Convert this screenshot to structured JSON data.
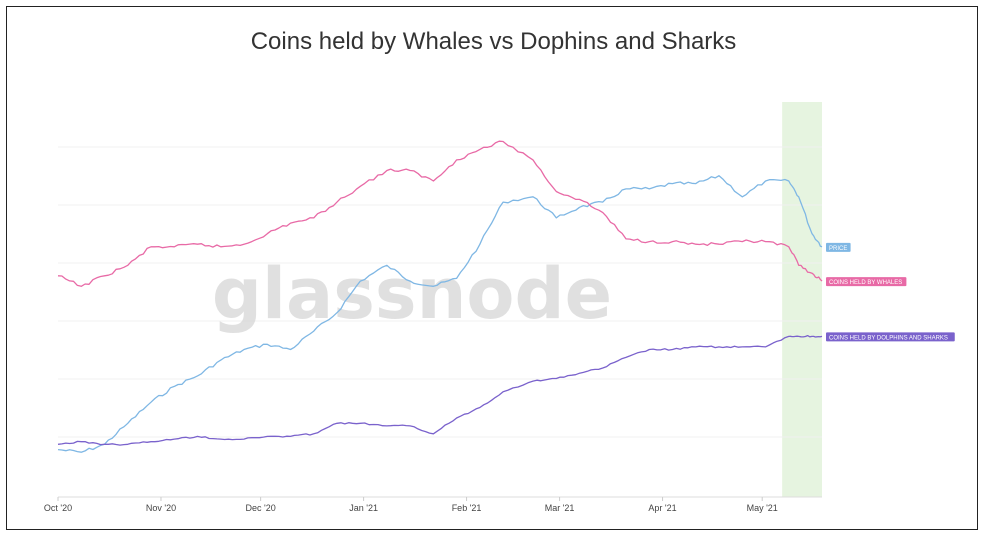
{
  "chart_data": {
    "type": "line",
    "title": "Coins held by Whales vs Dophins and Sharks",
    "watermark": "glassnode",
    "x_ticks": [
      "Oct '20",
      "Nov '20",
      "Dec '20",
      "Jan '21",
      "Feb '21",
      "Mar '21",
      "Apr '21",
      "May '21"
    ],
    "x_range": [
      "2020-10-01",
      "2021-05-19"
    ],
    "highlight": {
      "from": "2021-05-07",
      "to": "2021-05-19",
      "color": "#e6f4e0"
    },
    "series": [
      {
        "name": "PRICE",
        "color": "#7fb7e4",
        "x": [
          "2020-10-01",
          "2020-10-08",
          "2020-10-15",
          "2020-10-22",
          "2020-10-29",
          "2020-11-05",
          "2020-11-12",
          "2020-11-19",
          "2020-11-26",
          "2020-12-03",
          "2020-12-10",
          "2020-12-17",
          "2020-12-24",
          "2020-12-31",
          "2021-01-08",
          "2021-01-15",
          "2021-01-22",
          "2021-01-29",
          "2021-02-05",
          "2021-02-12",
          "2021-02-21",
          "2021-02-28",
          "2021-03-07",
          "2021-03-14",
          "2021-03-21",
          "2021-03-28",
          "2021-04-04",
          "2021-04-11",
          "2021-04-18",
          "2021-04-25",
          "2021-05-02",
          "2021-05-09",
          "2021-05-12",
          "2021-05-16",
          "2021-05-19"
        ],
        "y": [
          18,
          17,
          20,
          28,
          36,
          42,
          46,
          52,
          56,
          58,
          56,
          63,
          70,
          82,
          88,
          82,
          80,
          83,
          96,
          112,
          114,
          106,
          110,
          112,
          117,
          117,
          119,
          119,
          122,
          114,
          120,
          120,
          114,
          100,
          95
        ]
      },
      {
        "name": "COINS HELD BY WHALES",
        "color": "#e86aa6",
        "x": [
          "2020-10-01",
          "2020-10-08",
          "2020-10-15",
          "2020-10-22",
          "2020-10-29",
          "2020-11-05",
          "2020-11-12",
          "2020-11-19",
          "2020-11-26",
          "2020-12-03",
          "2020-12-10",
          "2020-12-17",
          "2020-12-24",
          "2020-12-31",
          "2021-01-08",
          "2021-01-15",
          "2021-01-22",
          "2021-01-29",
          "2021-02-05",
          "2021-02-12",
          "2021-02-21",
          "2021-02-28",
          "2021-03-07",
          "2021-03-14",
          "2021-03-21",
          "2021-03-28",
          "2021-04-04",
          "2021-04-11",
          "2021-04-18",
          "2021-04-25",
          "2021-05-02",
          "2021-05-09",
          "2021-05-12",
          "2021-05-16",
          "2021-05-19"
        ],
        "y": [
          84,
          80,
          84,
          88,
          95,
          95,
          96,
          95,
          96,
          100,
          104,
          106,
          112,
          118,
          124,
          124,
          120,
          128,
          132,
          135,
          128,
          116,
          113,
          108,
          98,
          97,
          97,
          96,
          96,
          97,
          97,
          95,
          88,
          85,
          82
        ]
      },
      {
        "name": "COINS HELD BY DOLPHINS AND SHARKS",
        "color": "#7a62cc",
        "x": [
          "2020-10-01",
          "2020-10-08",
          "2020-10-15",
          "2020-10-22",
          "2020-10-29",
          "2020-11-05",
          "2020-11-12",
          "2020-11-19",
          "2020-11-26",
          "2020-12-03",
          "2020-12-10",
          "2020-12-17",
          "2020-12-24",
          "2020-12-31",
          "2021-01-08",
          "2021-01-15",
          "2021-01-22",
          "2021-01-29",
          "2021-02-05",
          "2021-02-12",
          "2021-02-21",
          "2021-02-28",
          "2021-03-07",
          "2021-03-14",
          "2021-03-21",
          "2021-03-28",
          "2021-04-04",
          "2021-04-11",
          "2021-04-18",
          "2021-04-25",
          "2021-05-02",
          "2021-05-09",
          "2021-05-12",
          "2021-05-16",
          "2021-05-19"
        ],
        "y": [
          20,
          21,
          20,
          20,
          21,
          22,
          23,
          22,
          22,
          23,
          23,
          24,
          28,
          28,
          27,
          27,
          24,
          30,
          34,
          40,
          44,
          45,
          47,
          49,
          53,
          56,
          56,
          57,
          57,
          57,
          57,
          61,
          61,
          61,
          61
        ]
      }
    ],
    "y_range": [
      0,
      150
    ],
    "legend_placement": "right, beside line ends"
  }
}
